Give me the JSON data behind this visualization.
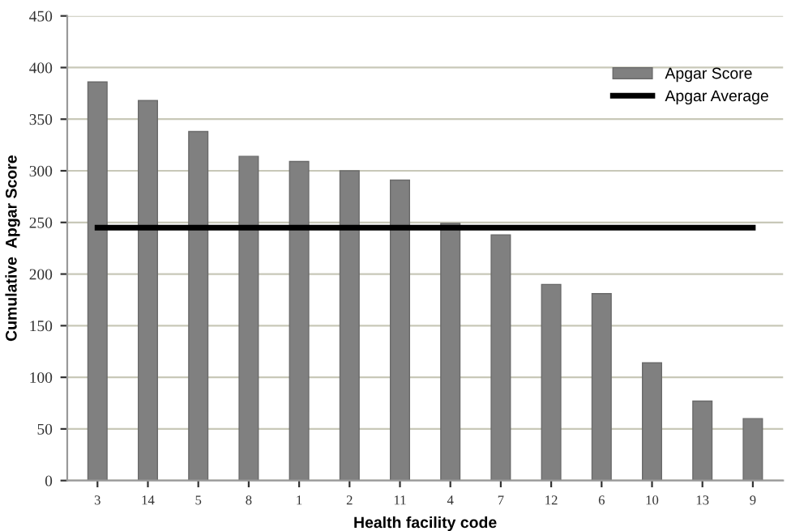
{
  "chart_data": {
    "type": "bar",
    "xlabel": "Health facility code",
    "ylabel": "Cumulative  Apgar Score",
    "categories": [
      "3",
      "14",
      "5",
      "8",
      "1",
      "2",
      "11",
      "4",
      "7",
      "12",
      "6",
      "10",
      "13",
      "9"
    ],
    "series": [
      {
        "name": "Apgar Score",
        "color": "#808080",
        "values": [
          386,
          368,
          338,
          314,
          309,
          300,
          291,
          249,
          238,
          190,
          181,
          114,
          77,
          60
        ]
      },
      {
        "name": "Apgar Average",
        "type": "line",
        "color": "#000000",
        "values": [
          245,
          245,
          245,
          245,
          245,
          245,
          245,
          245,
          245,
          245,
          245,
          245,
          245,
          245
        ]
      }
    ],
    "ylim": [
      0,
      450
    ],
    "yticks": [
      0,
      50,
      100,
      150,
      200,
      250,
      300,
      350,
      400,
      450
    ],
    "grid": "y",
    "legend": "top right",
    "marker": "none",
    "line_style": "solid"
  }
}
